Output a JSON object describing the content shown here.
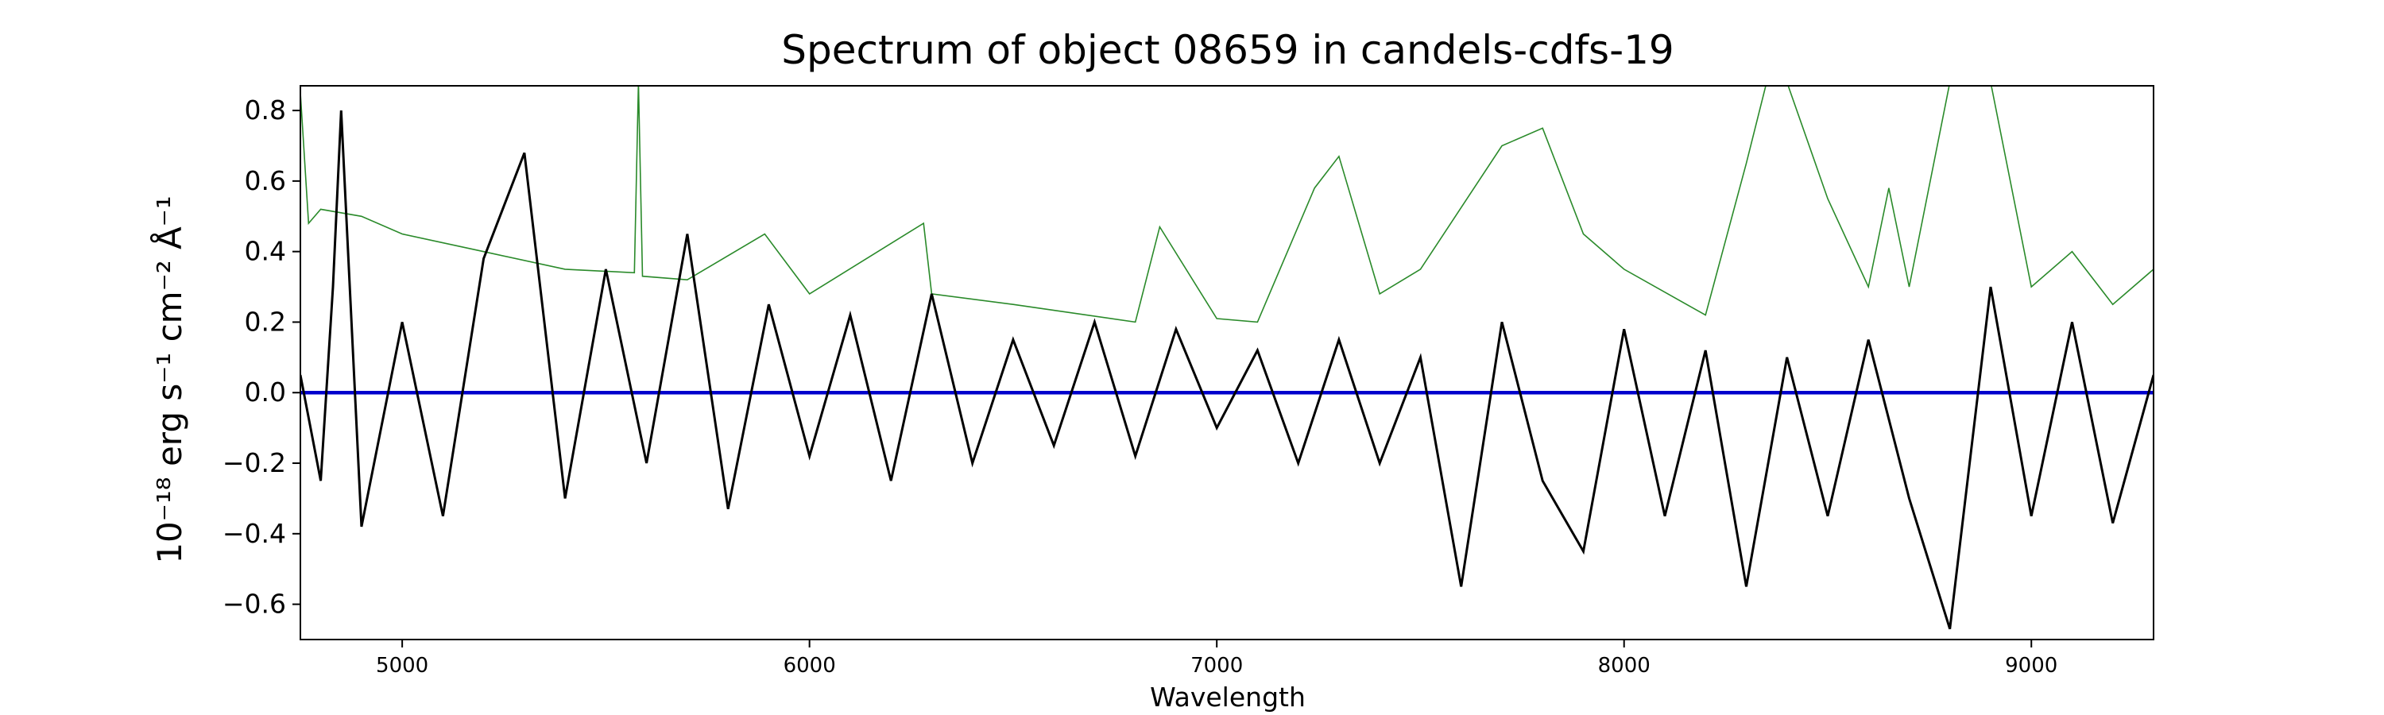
{
  "chart_data": {
    "type": "line",
    "title": "Spectrum of object 08659 in candels-cdfs-19",
    "xlabel": "Wavelength",
    "ylabel": "10⁻¹⁸ erg s⁻¹ cm⁻² Å⁻¹",
    "xlim": [
      4750,
      9300
    ],
    "ylim": [
      -0.7,
      0.87
    ],
    "x_ticks": [
      5000,
      6000,
      7000,
      8000,
      9000
    ],
    "y_ticks": [
      -0.6,
      -0.4,
      -0.2,
      0.0,
      0.2,
      0.4,
      0.6,
      0.8
    ],
    "grid": false,
    "colors": {
      "flux": "#000000",
      "error": "#2a8a2a",
      "model": "#0000cc"
    },
    "series": [
      {
        "x": [
          4750,
          4800,
          4830,
          4850,
          4900,
          5000,
          5100,
          5200,
          5300,
          5400,
          5500,
          5600,
          5700,
          5800,
          5900,
          6000,
          6100,
          6200,
          6300,
          6400,
          6500,
          6600,
          6700,
          6800,
          6900,
          7000,
          7100,
          7200,
          7300,
          7400,
          7500,
          7600,
          7700,
          7800,
          7900,
          8000,
          8100,
          8200,
          8300,
          8400,
          8500,
          8600,
          8700,
          8800,
          8900,
          9000,
          9100,
          9200,
          9300
        ],
        "values": [
          0.05,
          -0.25,
          0.3,
          0.8,
          -0.38,
          0.2,
          -0.35,
          0.38,
          0.68,
          -0.3,
          0.35,
          -0.2,
          0.45,
          -0.33,
          0.25,
          -0.18,
          0.22,
          -0.25,
          0.28,
          -0.2,
          0.15,
          -0.15,
          0.2,
          -0.18,
          0.18,
          -0.1,
          0.12,
          -0.2,
          0.15,
          -0.2,
          0.1,
          -0.55,
          0.2,
          -0.25,
          -0.45,
          0.18,
          -0.35,
          0.12,
          -0.55,
          0.1,
          -0.35,
          0.15,
          -0.3,
          -0.67,
          0.3,
          -0.35,
          0.2,
          -0.37,
          0.05
        ]
      },
      {
        "x": [
          4750,
          4770,
          4800,
          4900,
          5000,
          5200,
          5400,
          5570,
          5580,
          5590,
          5700,
          5890,
          6000,
          6280,
          6300,
          6500,
          6800,
          6860,
          7000,
          7100,
          7240,
          7300,
          7400,
          7500,
          7700,
          7800,
          7900,
          8000,
          8200,
          8300,
          8350,
          8400,
          8500,
          8600,
          8650,
          8700,
          8800,
          8850,
          8900,
          9000,
          9100,
          9200,
          9300
        ],
        "values": [
          0.85,
          0.48,
          0.52,
          0.5,
          0.45,
          0.4,
          0.35,
          0.34,
          0.88,
          0.33,
          0.32,
          0.45,
          0.28,
          0.48,
          0.28,
          0.25,
          0.2,
          0.47,
          0.21,
          0.2,
          0.58,
          0.67,
          0.28,
          0.35,
          0.7,
          0.75,
          0.45,
          0.35,
          0.22,
          0.65,
          0.88,
          0.88,
          0.55,
          0.3,
          0.58,
          0.3,
          0.88,
          0.88,
          0.88,
          0.3,
          0.4,
          0.25,
          0.35
        ]
      },
      {
        "x": [
          4750,
          9300
        ],
        "values": [
          0.0,
          0.0
        ]
      }
    ]
  }
}
